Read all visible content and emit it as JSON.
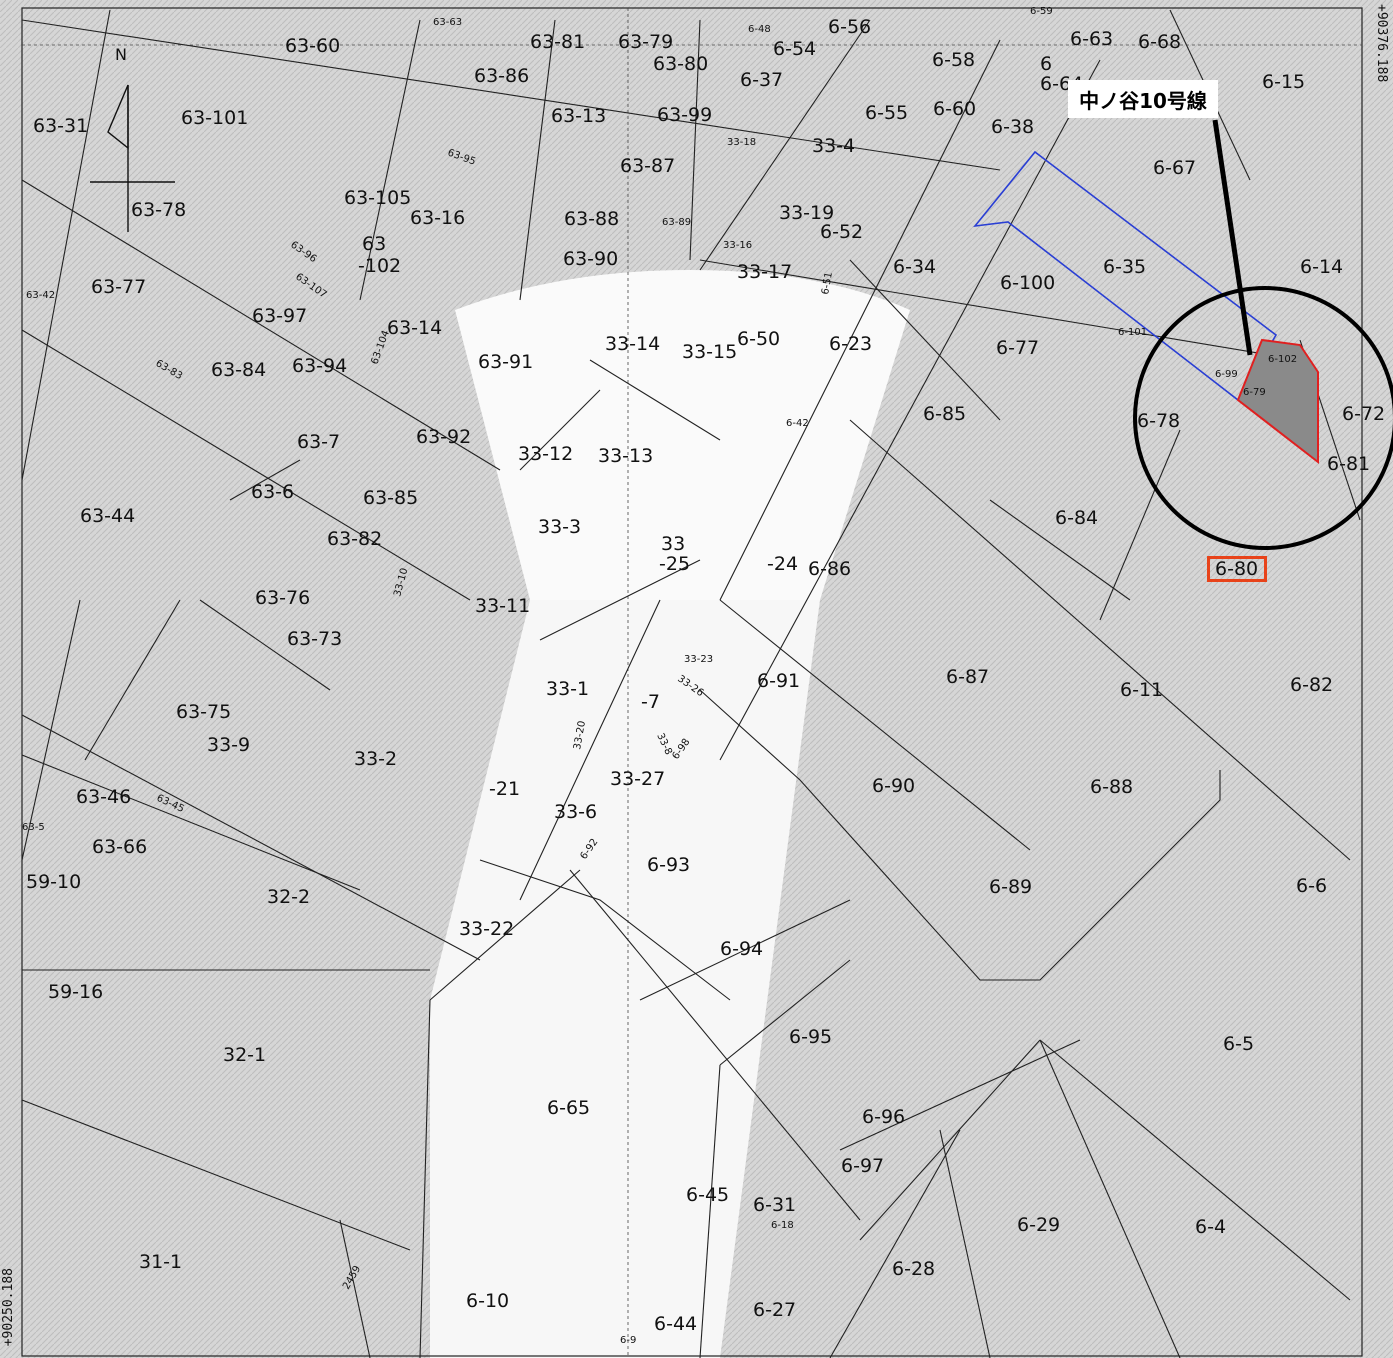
{
  "map": {
    "route_label": "中ノ谷10号線",
    "highlight_parcel": "6-80",
    "coords": {
      "top_right": "+90376.188",
      "bottom_left": "+90250.188"
    },
    "north_arrow_label": "N",
    "colors": {
      "highlight_box": "#e8431a",
      "road_outline": "#2a3fd4",
      "target_outline": "#e02020",
      "target_fill": "#8a8a8a",
      "callout_circle": "#000000"
    },
    "labels_large": [
      "63-60",
      "63-81",
      "63-79",
      "6-56",
      "6-54",
      "6-58",
      "6-63",
      "6-68",
      "6-15",
      "63-86",
      "63-80",
      "6-37",
      "63-31",
      "63-101",
      "63-13",
      "63-99",
      "6-55",
      "6-60",
      "6-38",
      "33-4",
      "63-87",
      "6-67",
      "63-105",
      "63-16",
      "63-78",
      "63-88",
      "33-19",
      "6-52",
      "63",
      "-102",
      "63-90",
      "33-17",
      "6-34",
      "6-100",
      "6-35",
      "6-14",
      "63-77",
      "63-97",
      "63-14",
      "63-94",
      "33-15",
      "6-50",
      "6-23",
      "6-77",
      "63-91",
      "33-14",
      "63-84",
      "6-85",
      "6-78",
      "6-72",
      "63-7",
      "63-92",
      "33-12",
      "33-13",
      "6-81",
      "63-6",
      "63-85",
      "6-84",
      "63-44",
      "33-3",
      "33",
      "-25",
      "-24",
      "6-86",
      "63-82",
      "6-80",
      "63-76",
      "33-11",
      "63-73",
      "6-87",
      "6-91",
      "6-11",
      "6-82",
      "33-1",
      "-7",
      "63-75",
      "33-9",
      "33-2",
      "6-90",
      "6-88",
      "-21",
      "63-46",
      "33-6",
      "33-27",
      "63-66",
      "6-93",
      "6-89",
      "6-6",
      "59-10",
      "32-2",
      "33-22",
      "6-94",
      "59-16",
      "6-95",
      "6-5",
      "32-1",
      "6-65",
      "6-96",
      "6-97",
      "6-45",
      "6-31",
      "6-29",
      "6-4",
      "31-1",
      "6-28",
      "6-10",
      "6-27",
      "6-44",
      "6-64",
      "6"
    ],
    "labels_small": [
      "63-63",
      "6-48",
      "6-59",
      "63-95",
      "63-96",
      "63-107",
      "33-18",
      "63-89",
      "33-16",
      "6-51",
      "63-42",
      "63-83",
      "63-104",
      "6-101",
      "6-102",
      "6-99",
      "6-79",
      "6-42",
      "33-10",
      "33-23",
      "33-26",
      "33-8",
      "33-20",
      "6-98",
      "63-45",
      "6-92",
      "6-18",
      "2459",
      "6-9",
      "63-5"
    ]
  }
}
